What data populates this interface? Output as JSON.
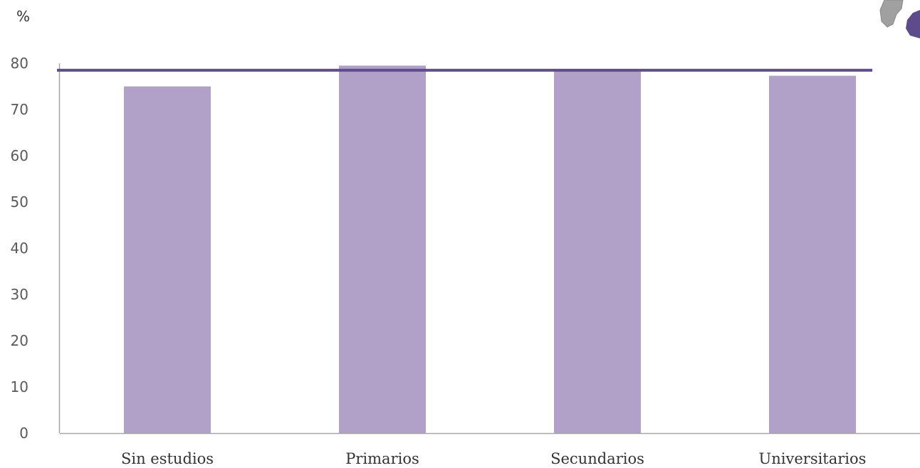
{
  "chart_data": {
    "type": "bar",
    "ylabel": "%",
    "categories": [
      "Sin estudios",
      "Primarios",
      "Secundarios",
      "Universitarios"
    ],
    "values": [
      75,
      79.5,
      78.5,
      77.3
    ],
    "reference_line": {
      "value": 78.5
    },
    "yticks": [
      0,
      10,
      20,
      30,
      40,
      50,
      60,
      70,
      80
    ],
    "ylim": [
      0,
      80
    ],
    "grid": false,
    "legend": "none",
    "colors": {
      "bar": "#b1a0c7",
      "reference_line": "#5e4b8b",
      "axis": "#a6a6a6"
    }
  }
}
